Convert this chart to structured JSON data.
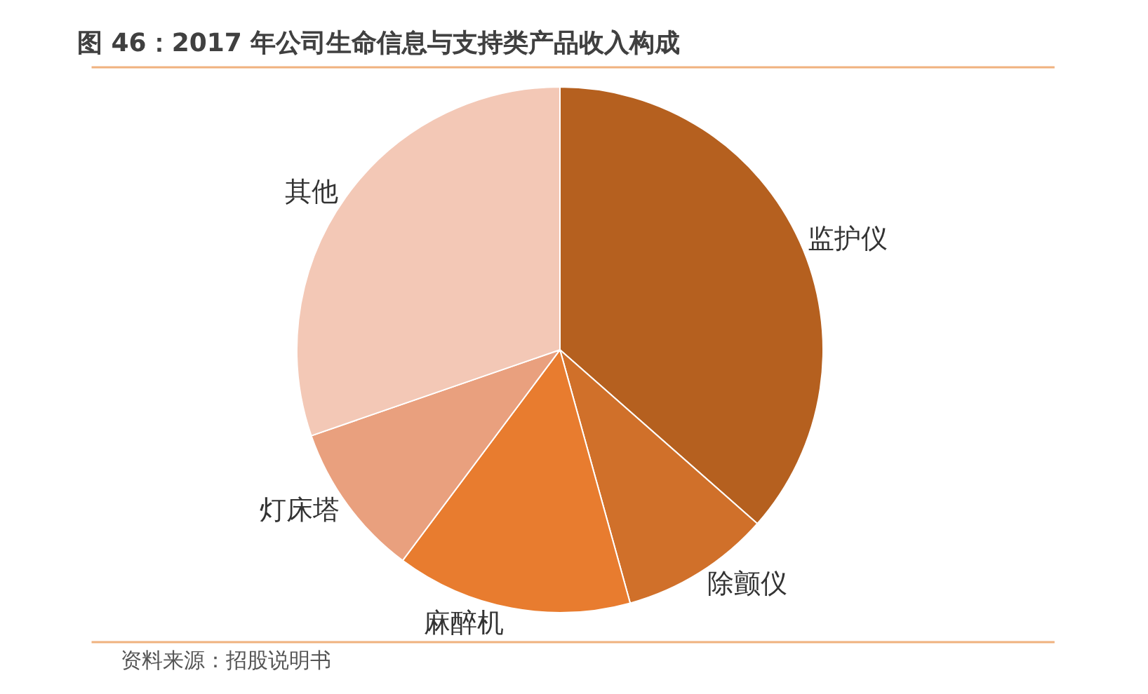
{
  "chart_data": {
    "type": "pie",
    "title": "图 46：2017 年公司生命信息与支持类产品收入构成",
    "categories": [
      "监护仪",
      "除颤仪",
      "麻醉机",
      "灯床塔",
      "其他"
    ],
    "values": [
      36.5,
      9.2,
      14.5,
      9.5,
      30.3
    ],
    "colors": [
      "#b5601f",
      "#d0702a",
      "#e87c2f",
      "#e9a07e",
      "#f3c8b6"
    ],
    "annotations": [
      "资料来源：招股说明书"
    ],
    "legend": false
  }
}
